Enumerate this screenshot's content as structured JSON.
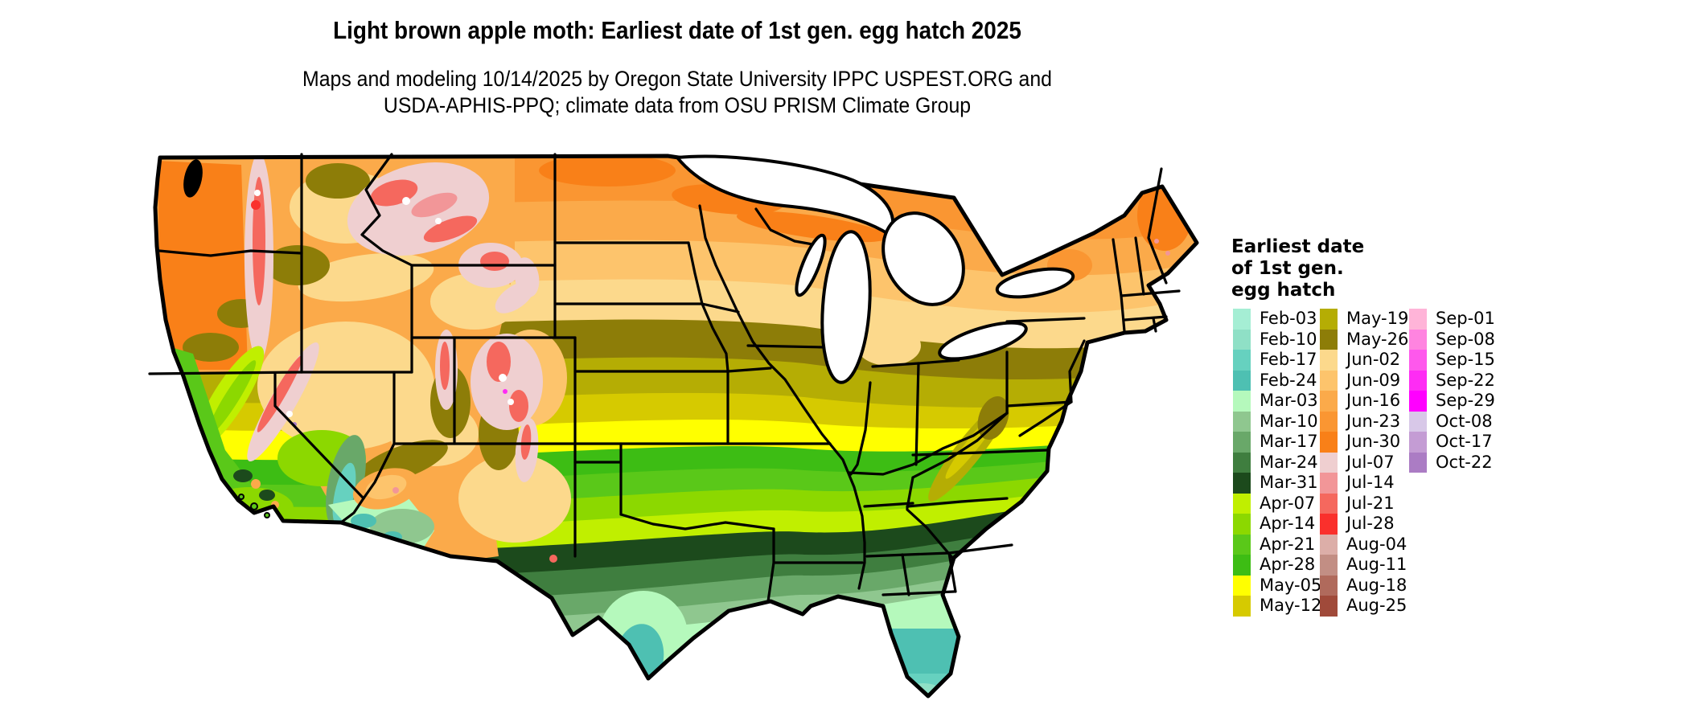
{
  "header": {
    "title": "Light brown apple moth: Earliest date of 1st gen. egg hatch 2025",
    "subtitle_line1": "Maps and modeling 10/14/2025 by Oregon State University IPPC USPEST.ORG and",
    "subtitle_line2": "USDA-APHIS-PPQ; climate data from OSU PRISM Climate Group"
  },
  "legend": {
    "title": "Earliest date of 1st gen. egg hatch",
    "columns": [
      [
        {
          "label": "Feb-03",
          "color": "#a5eed4"
        },
        {
          "label": "Feb-10",
          "color": "#8fe0c6"
        },
        {
          "label": "Feb-17",
          "color": "#66d1bf"
        },
        {
          "label": "Feb-24",
          "color": "#4ec0b2"
        },
        {
          "label": "Mar-03",
          "color": "#b5f9bc"
        },
        {
          "label": "Mar-10",
          "color": "#8fc78f"
        },
        {
          "label": "Mar-17",
          "color": "#69a869"
        },
        {
          "label": "Mar-24",
          "color": "#3f7e3f"
        },
        {
          "label": "Mar-31",
          "color": "#1c4a1c"
        },
        {
          "label": "Apr-07",
          "color": "#c0ef00"
        },
        {
          "label": "Apr-14",
          "color": "#8cd800"
        },
        {
          "label": "Apr-21",
          "color": "#5ac819"
        },
        {
          "label": "Apr-28",
          "color": "#3dbd14"
        },
        {
          "label": "May-05",
          "color": "#ffff00"
        },
        {
          "label": "May-12",
          "color": "#d6ca00"
        }
      ],
      [
        {
          "label": "May-19",
          "color": "#b5ad04"
        },
        {
          "label": "May-26",
          "color": "#8d7d08"
        },
        {
          "label": "Jun-02",
          "color": "#fcd98c"
        },
        {
          "label": "Jun-09",
          "color": "#fdc46c"
        },
        {
          "label": "Jun-16",
          "color": "#fbaa4a"
        },
        {
          "label": "Jun-23",
          "color": "#fa9632"
        },
        {
          "label": "Jun-30",
          "color": "#f98018"
        },
        {
          "label": "Jul-07",
          "color": "#efcfd0"
        },
        {
          "label": "Jul-14",
          "color": "#f29698"
        },
        {
          "label": "Jul-21",
          "color": "#f5685e"
        },
        {
          "label": "Jul-28",
          "color": "#fa302c"
        },
        {
          "label": "Aug-04",
          "color": "#dcaea8"
        },
        {
          "label": "Aug-11",
          "color": "#c28e84"
        },
        {
          "label": "Aug-18",
          "color": "#b06a5c"
        },
        {
          "label": "Aug-25",
          "color": "#a04a3a"
        }
      ],
      [
        {
          "label": "Sep-01",
          "color": "#ffb4d8"
        },
        {
          "label": "Sep-08",
          "color": "#ff84e0"
        },
        {
          "label": "Sep-15",
          "color": "#fe58ec"
        },
        {
          "label": "Sep-22",
          "color": "#fe2cf4"
        },
        {
          "label": "Sep-29",
          "color": "#ff00ff"
        },
        {
          "label": "Oct-08",
          "color": "#d8c8e8"
        },
        {
          "label": "Oct-17",
          "color": "#c49cd4"
        },
        {
          "label": "Oct-22",
          "color": "#ab7cc4"
        }
      ]
    ]
  },
  "map": {
    "water_color": "#ffffff",
    "border_color": "#000000"
  }
}
